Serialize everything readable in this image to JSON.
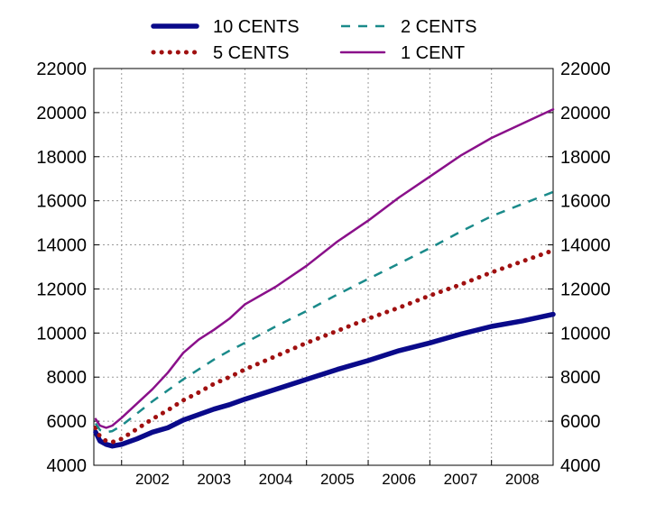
{
  "chart_data": {
    "type": "line",
    "title": "",
    "xlabel": "",
    "ylabel": "",
    "ylim": [
      4000,
      22000
    ],
    "y_ticks": [
      "4000",
      "6000",
      "8000",
      "10000",
      "12000",
      "14000",
      "16000",
      "18000",
      "20000",
      "22000"
    ],
    "y_axis_right_duplicate": true,
    "xlim": [
      2001.55,
      2009.0
    ],
    "x_categories": [
      "2002",
      "2003",
      "2004",
      "2005",
      "2006",
      "2007",
      "2008"
    ],
    "grid": "dotted vertical and horizontal",
    "legend_position": "top, two columns",
    "series": [
      {
        "name": "10 CENTS",
        "color": "#0a0a8a",
        "style": "solid-thick",
        "x": [
          2001.58,
          2001.65,
          2001.75,
          2001.85,
          2002.0,
          2002.25,
          2002.5,
          2002.75,
          2003.0,
          2003.25,
          2003.5,
          2003.75,
          2004.0,
          2004.5,
          2005.0,
          2005.5,
          2006.0,
          2006.5,
          2007.0,
          2007.5,
          2008.0,
          2008.5,
          2009.0
        ],
        "y": [
          5500,
          5100,
          4950,
          4870,
          4950,
          5200,
          5500,
          5700,
          6050,
          6300,
          6550,
          6750,
          7000,
          7450,
          7900,
          8350,
          8750,
          9200,
          9550,
          9950,
          10300,
          10550,
          10850
        ]
      },
      {
        "name": "5 CENTS",
        "color": "#a01010",
        "style": "dotted",
        "x": [
          2001.58,
          2001.65,
          2001.75,
          2001.85,
          2002.0,
          2002.25,
          2002.5,
          2002.75,
          2003.0,
          2003.25,
          2003.5,
          2003.75,
          2004.0,
          2004.5,
          2005.0,
          2005.5,
          2006.0,
          2006.5,
          2007.0,
          2007.5,
          2008.0,
          2008.5,
          2009.0
        ],
        "y": [
          5700,
          5300,
          5100,
          5050,
          5200,
          5650,
          6100,
          6500,
          6950,
          7300,
          7700,
          8000,
          8350,
          8950,
          9550,
          10100,
          10650,
          11150,
          11700,
          12200,
          12750,
          13250,
          13750
        ]
      },
      {
        "name": "2 CENTS",
        "color": "#1a8a8a",
        "style": "dashed",
        "x": [
          2001.58,
          2001.65,
          2001.75,
          2001.85,
          2002.0,
          2002.25,
          2002.5,
          2002.75,
          2003.0,
          2003.25,
          2003.5,
          2003.75,
          2004.0,
          2004.5,
          2005.0,
          2005.5,
          2006.0,
          2006.5,
          2007.0,
          2007.5,
          2008.0,
          2008.5,
          2009.0
        ],
        "y": [
          5900,
          5600,
          5500,
          5550,
          5800,
          6350,
          6900,
          7400,
          7900,
          8350,
          8800,
          9200,
          9550,
          10300,
          11000,
          11750,
          12450,
          13150,
          13850,
          14600,
          15300,
          15850,
          16400
        ]
      },
      {
        "name": "1 CENT",
        "color": "#8a108a",
        "style": "solid",
        "x": [
          2001.58,
          2001.65,
          2001.75,
          2001.85,
          2002.0,
          2002.25,
          2002.5,
          2002.75,
          2003.0,
          2003.25,
          2003.5,
          2003.75,
          2004.0,
          2004.5,
          2005.0,
          2005.5,
          2006.0,
          2006.5,
          2007.0,
          2007.5,
          2008.0,
          2008.5,
          2009.0
        ],
        "y": [
          6100,
          5800,
          5700,
          5800,
          6150,
          6800,
          7450,
          8200,
          9100,
          9700,
          10150,
          10650,
          11300,
          12100,
          13050,
          14150,
          15100,
          16150,
          17100,
          18050,
          18850,
          19500,
          20150
        ]
      }
    ]
  }
}
